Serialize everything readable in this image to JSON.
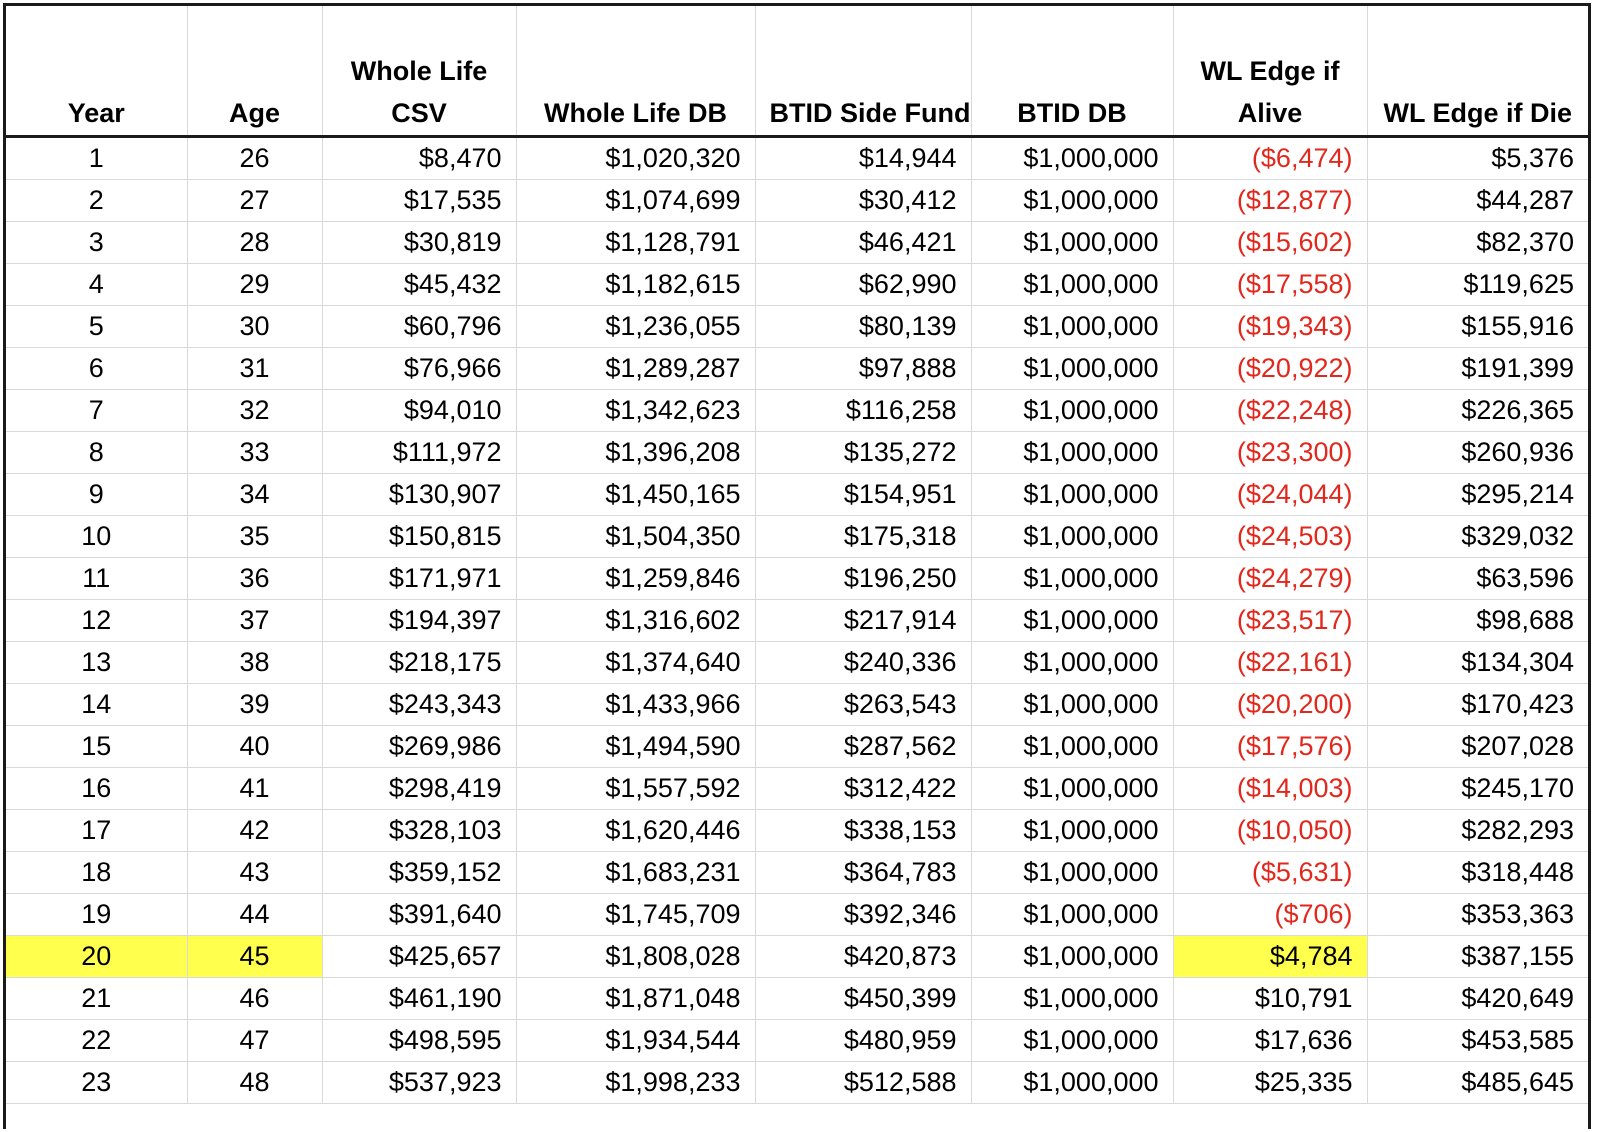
{
  "table": {
    "headers": [
      [
        "Year"
      ],
      [
        "Age"
      ],
      [
        "Whole Life",
        "CSV"
      ],
      [
        "Whole Life DB"
      ],
      [
        "BTID Side Fund"
      ],
      [
        "BTID DB"
      ],
      [
        "WL Edge if",
        "Alive"
      ],
      [
        "WL Edge if Die"
      ]
    ],
    "rows": [
      [
        "1",
        "26",
        "$8,470",
        "$1,020,320",
        "$14,944",
        "$1,000,000",
        "($6,474)",
        "$5,376"
      ],
      [
        "2",
        "27",
        "$17,535",
        "$1,074,699",
        "$30,412",
        "$1,000,000",
        "($12,877)",
        "$44,287"
      ],
      [
        "3",
        "28",
        "$30,819",
        "$1,128,791",
        "$46,421",
        "$1,000,000",
        "($15,602)",
        "$82,370"
      ],
      [
        "4",
        "29",
        "$45,432",
        "$1,182,615",
        "$62,990",
        "$1,000,000",
        "($17,558)",
        "$119,625"
      ],
      [
        "5",
        "30",
        "$60,796",
        "$1,236,055",
        "$80,139",
        "$1,000,000",
        "($19,343)",
        "$155,916"
      ],
      [
        "6",
        "31",
        "$76,966",
        "$1,289,287",
        "$97,888",
        "$1,000,000",
        "($20,922)",
        "$191,399"
      ],
      [
        "7",
        "32",
        "$94,010",
        "$1,342,623",
        "$116,258",
        "$1,000,000",
        "($22,248)",
        "$226,365"
      ],
      [
        "8",
        "33",
        "$111,972",
        "$1,396,208",
        "$135,272",
        "$1,000,000",
        "($23,300)",
        "$260,936"
      ],
      [
        "9",
        "34",
        "$130,907",
        "$1,450,165",
        "$154,951",
        "$1,000,000",
        "($24,044)",
        "$295,214"
      ],
      [
        "10",
        "35",
        "$150,815",
        "$1,504,350",
        "$175,318",
        "$1,000,000",
        "($24,503)",
        "$329,032"
      ],
      [
        "11",
        "36",
        "$171,971",
        "$1,259,846",
        "$196,250",
        "$1,000,000",
        "($24,279)",
        "$63,596"
      ],
      [
        "12",
        "37",
        "$194,397",
        "$1,316,602",
        "$217,914",
        "$1,000,000",
        "($23,517)",
        "$98,688"
      ],
      [
        "13",
        "38",
        "$218,175",
        "$1,374,640",
        "$240,336",
        "$1,000,000",
        "($22,161)",
        "$134,304"
      ],
      [
        "14",
        "39",
        "$243,343",
        "$1,433,966",
        "$263,543",
        "$1,000,000",
        "($20,200)",
        "$170,423"
      ],
      [
        "15",
        "40",
        "$269,986",
        "$1,494,590",
        "$287,562",
        "$1,000,000",
        "($17,576)",
        "$207,028"
      ],
      [
        "16",
        "41",
        "$298,419",
        "$1,557,592",
        "$312,422",
        "$1,000,000",
        "($14,003)",
        "$245,170"
      ],
      [
        "17",
        "42",
        "$328,103",
        "$1,620,446",
        "$338,153",
        "$1,000,000",
        "($10,050)",
        "$282,293"
      ],
      [
        "18",
        "43",
        "$359,152",
        "$1,683,231",
        "$364,783",
        "$1,000,000",
        "($5,631)",
        "$318,448"
      ],
      [
        "19",
        "44",
        "$391,640",
        "$1,745,709",
        "$392,346",
        "$1,000,000",
        "($706)",
        "$353,363"
      ],
      [
        "20",
        "45",
        "$425,657",
        "$1,808,028",
        "$420,873",
        "$1,000,000",
        "$4,784",
        "$387,155"
      ],
      [
        "21",
        "46",
        "$461,190",
        "$1,871,048",
        "$450,399",
        "$1,000,000",
        "$10,791",
        "$420,649"
      ],
      [
        "22",
        "47",
        "$498,595",
        "$1,934,544",
        "$480,959",
        "$1,000,000",
        "$17,636",
        "$453,585"
      ],
      [
        "23",
        "48",
        "$537,923",
        "$1,998,233",
        "$512,588",
        "$1,000,000",
        "$25,335",
        "$485,645"
      ]
    ],
    "highlight": {
      "row": "20",
      "columns": [
        0,
        1,
        6
      ],
      "color": "#ffff4d"
    },
    "negative_color": "#e2271c"
  }
}
